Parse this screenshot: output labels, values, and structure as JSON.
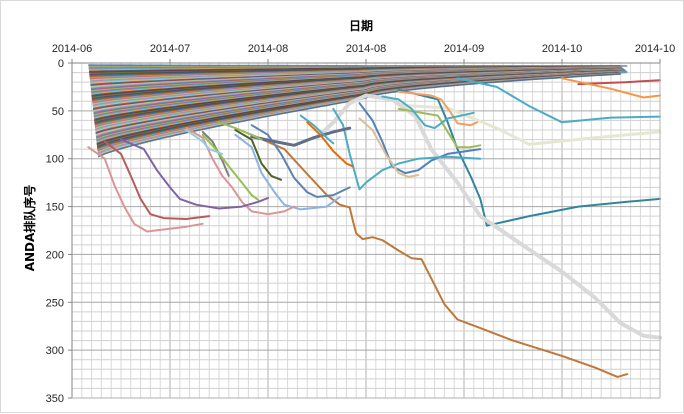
{
  "chart_data": {
    "type": "line",
    "title": "",
    "xlabel": "日期",
    "ylabel": "ANDA排队序号",
    "x_axis_position": "top",
    "y_axis_reversed": true,
    "ylim": [
      0,
      350
    ],
    "y_ticks": [
      0,
      50,
      100,
      150,
      200,
      250,
      300,
      350
    ],
    "x_tick_labels": [
      "2014-06",
      "2014-07",
      "2014-08",
      "2014-08",
      "2014-09",
      "2014-10",
      "2014-10"
    ],
    "x_tick_days": [
      0,
      30,
      60,
      90,
      120,
      150,
      180
    ],
    "grid": true,
    "legend": "none",
    "series": [
      {
        "color": "#c0504d",
        "width": 2,
        "points": [
          [
            155,
            22
          ],
          [
            170,
            20
          ],
          [
            180,
            18
          ]
        ]
      },
      {
        "color": "#f79646",
        "width": 2,
        "points": [
          [
            150,
            16
          ],
          [
            165,
            27
          ],
          [
            175,
            36
          ],
          [
            180,
            34
          ]
        ]
      },
      {
        "color": "#4bacc6",
        "width": 2,
        "points": [
          [
            118,
            16
          ],
          [
            130,
            25
          ],
          [
            140,
            45
          ],
          [
            150,
            62
          ],
          [
            165,
            57
          ],
          [
            180,
            56
          ]
        ]
      },
      {
        "color": "#e6e6d2",
        "width": 3,
        "points": [
          [
            100,
            44
          ],
          [
            115,
            47
          ],
          [
            130,
            68
          ],
          [
            140,
            85
          ],
          [
            160,
            78
          ],
          [
            180,
            72
          ]
        ]
      },
      {
        "color": "#31859c",
        "width": 2,
        "points": [
          [
            100,
            28
          ],
          [
            112,
            38
          ],
          [
            115,
            62
          ],
          [
            118,
            90
          ],
          [
            122,
            118
          ],
          [
            125,
            142
          ],
          [
            127,
            170
          ],
          [
            140,
            160
          ],
          [
            155,
            150
          ],
          [
            170,
            145
          ],
          [
            180,
            142
          ]
        ]
      },
      {
        "color": "#d9d9d9",
        "width": 4,
        "points": [
          [
            75,
            78
          ],
          [
            80,
            62
          ],
          [
            85,
            42
          ],
          [
            90,
            34
          ],
          [
            98,
            38
          ],
          [
            105,
            55
          ],
          [
            110,
            90
          ],
          [
            118,
            125
          ],
          [
            125,
            160
          ],
          [
            140,
            195
          ],
          [
            150,
            218
          ],
          [
            160,
            245
          ],
          [
            168,
            272
          ],
          [
            175,
            285
          ],
          [
            180,
            287
          ]
        ]
      },
      {
        "color": "#c0783a",
        "width": 2,
        "points": [
          [
            55,
            75
          ],
          [
            65,
            90
          ],
          [
            72,
            116
          ],
          [
            78,
            138
          ],
          [
            82,
            148
          ],
          [
            85,
            151
          ],
          [
            86,
            165
          ],
          [
            87,
            178
          ],
          [
            89,
            184
          ],
          [
            92,
            182
          ],
          [
            95,
            185
          ],
          [
            100,
            196
          ],
          [
            104,
            204
          ],
          [
            107,
            205
          ],
          [
            110,
            225
          ],
          [
            114,
            252
          ],
          [
            118,
            268
          ],
          [
            125,
            277
          ],
          [
            135,
            290
          ],
          [
            150,
            306
          ],
          [
            160,
            318
          ],
          [
            167,
            328
          ],
          [
            170,
            325
          ]
        ]
      },
      {
        "color": "#f0a060",
        "width": 2,
        "points": [
          [
            100,
            30
          ],
          [
            105,
            32
          ],
          [
            110,
            34
          ],
          [
            113,
            38
          ],
          [
            116,
            52
          ],
          [
            118,
            63
          ],
          [
            122,
            65
          ],
          [
            124,
            62
          ]
        ]
      },
      {
        "color": "#9bbb59",
        "width": 2,
        "points": [
          [
            100,
            48
          ],
          [
            107,
            52
          ],
          [
            112,
            55
          ],
          [
            115,
            72
          ],
          [
            118,
            88
          ],
          [
            122,
            88
          ],
          [
            125,
            86
          ]
        ]
      },
      {
        "color": "#4bacc6",
        "width": 2,
        "points": [
          [
            95,
            35
          ],
          [
            100,
            38
          ],
          [
            104,
            48
          ],
          [
            108,
            65
          ],
          [
            111,
            68
          ],
          [
            115,
            58
          ],
          [
            123,
            52
          ]
        ]
      },
      {
        "color": "#4f81bd",
        "width": 2,
        "points": [
          [
            88,
            42
          ],
          [
            92,
            60
          ],
          [
            95,
            82
          ],
          [
            98,
            108
          ],
          [
            102,
            115
          ],
          [
            106,
            112
          ],
          [
            110,
            102
          ],
          [
            115,
            95
          ],
          [
            125,
            90
          ]
        ]
      },
      {
        "color": "#4bacc6",
        "width": 2,
        "points": [
          [
            80,
            48
          ],
          [
            83,
            65
          ],
          [
            85,
            95
          ],
          [
            87,
            120
          ],
          [
            88,
            132
          ],
          [
            90,
            125
          ],
          [
            95,
            112
          ],
          [
            100,
            105
          ],
          [
            106,
            100
          ],
          [
            115,
            98
          ],
          [
            125,
            100
          ]
        ]
      },
      {
        "color": "#d9c099",
        "width": 2,
        "points": [
          [
            88,
            58
          ],
          [
            92,
            70
          ],
          [
            96,
            95
          ],
          [
            100,
            115
          ],
          [
            103,
            119
          ],
          [
            106,
            117
          ]
        ]
      },
      {
        "color": "#5b84b1",
        "width": 2,
        "points": [
          [
            55,
            65
          ],
          [
            60,
            75
          ],
          [
            64,
            95
          ],
          [
            68,
            120
          ],
          [
            72,
            135
          ],
          [
            75,
            140
          ],
          [
            80,
            138
          ],
          [
            85,
            130
          ]
        ]
      },
      {
        "color": "#4f6228",
        "width": 2,
        "points": [
          [
            50,
            70
          ],
          [
            55,
            80
          ],
          [
            58,
            105
          ],
          [
            61,
            118
          ],
          [
            64,
            122
          ]
        ]
      },
      {
        "color": "#8db3e2",
        "width": 2,
        "points": [
          [
            50,
            75
          ],
          [
            55,
            88
          ],
          [
            58,
            115
          ],
          [
            62,
            135
          ],
          [
            65,
            148
          ],
          [
            70,
            153
          ],
          [
            78,
            150
          ],
          [
            82,
            140
          ]
        ]
      },
      {
        "color": "#d99694",
        "width": 2,
        "points": [
          [
            35,
            68
          ],
          [
            40,
            78
          ],
          [
            43,
            100
          ],
          [
            46,
            118
          ],
          [
            49,
            130
          ],
          [
            52,
            145
          ],
          [
            55,
            155
          ],
          [
            60,
            158
          ],
          [
            65,
            155
          ],
          [
            68,
            150
          ]
        ]
      },
      {
        "color": "#7f7f7f",
        "width": 2,
        "points": [
          [
            40,
            72
          ],
          [
            43,
            82
          ],
          [
            46,
            102
          ],
          [
            48,
            118
          ]
        ]
      },
      {
        "color": "#94c154",
        "width": 2,
        "points": [
          [
            40,
            75
          ],
          [
            44,
            90
          ],
          [
            48,
            108
          ],
          [
            52,
            125
          ],
          [
            55,
            138
          ],
          [
            57,
            143
          ]
        ]
      },
      {
        "color": "#93cddd",
        "width": 2,
        "points": [
          [
            35,
            70
          ],
          [
            40,
            82
          ],
          [
            42,
            90
          ],
          [
            46,
            95
          ]
        ]
      },
      {
        "color": "#8064a2",
        "width": 2,
        "points": [
          [
            15,
            80
          ],
          [
            22,
            90
          ],
          [
            26,
            112
          ],
          [
            30,
            130
          ],
          [
            33,
            142
          ],
          [
            38,
            148
          ],
          [
            45,
            152
          ],
          [
            52,
            150
          ],
          [
            57,
            145
          ],
          [
            60,
            141
          ]
        ]
      },
      {
        "color": "#b65c5c",
        "width": 2,
        "points": [
          [
            10,
            82
          ],
          [
            15,
            95
          ],
          [
            18,
            118
          ],
          [
            21,
            142
          ],
          [
            24,
            158
          ],
          [
            28,
            162
          ],
          [
            35,
            163
          ],
          [
            42,
            160
          ]
        ]
      },
      {
        "color": "#d99694",
        "width": 2,
        "points": [
          [
            5,
            88
          ],
          [
            10,
            100
          ],
          [
            13,
            128
          ],
          [
            16,
            150
          ],
          [
            19,
            168
          ],
          [
            23,
            176
          ],
          [
            28,
            174
          ],
          [
            35,
            171
          ],
          [
            40,
            168
          ]
        ]
      },
      {
        "color": "#5f6e8a",
        "width": 3,
        "points": [
          [
            55,
            77
          ],
          [
            62,
            82
          ],
          [
            68,
            86
          ],
          [
            74,
            78
          ],
          [
            80,
            72
          ],
          [
            85,
            68
          ]
        ]
      },
      {
        "color": "#4bacc6",
        "width": 2,
        "points": [
          [
            70,
            55
          ],
          [
            74,
            65
          ],
          [
            78,
            78
          ],
          [
            80,
            84
          ]
        ]
      },
      {
        "color": "#e46c0a",
        "width": 2,
        "points": [
          [
            72,
            62
          ],
          [
            76,
            75
          ],
          [
            80,
            92
          ],
          [
            84,
            105
          ],
          [
            86,
            108
          ]
        ]
      },
      {
        "color": "#9bbb59",
        "width": 2,
        "points": [
          [
            45,
            62
          ],
          [
            50,
            68
          ],
          [
            55,
            75
          ],
          [
            58,
            80
          ]
        ]
      }
    ]
  }
}
